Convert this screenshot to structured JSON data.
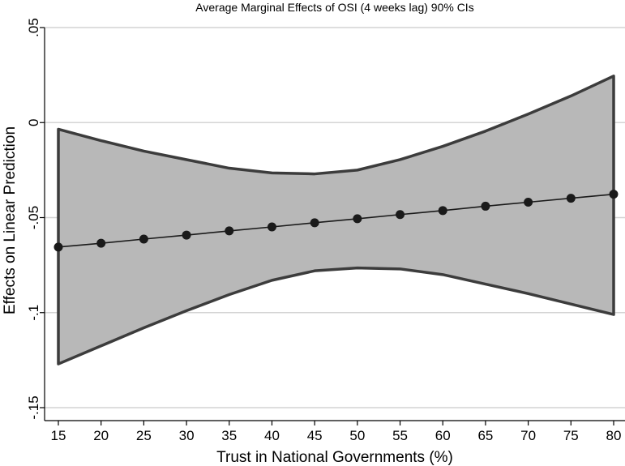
{
  "chart_data": {
    "type": "line",
    "title": "Average Marginal Effects of OSI (4 weeks lag) 90% CIs",
    "xlabel": "Trust in National Governments  (%)",
    "ylabel": "Effects on Linear Prediction",
    "x": [
      15,
      20,
      25,
      30,
      35,
      40,
      45,
      50,
      55,
      60,
      65,
      70,
      75,
      80
    ],
    "series": [
      {
        "name": "Average marginal effect",
        "values": [
          -0.0655,
          -0.0635,
          -0.0613,
          -0.0592,
          -0.057,
          -0.0549,
          -0.0527,
          -0.0506,
          -0.0484,
          -0.0463,
          -0.044,
          -0.0419,
          -0.0398,
          -0.0377
        ]
      }
    ],
    "ci_upper": [
      -0.0035,
      -0.0095,
      -0.015,
      -0.0195,
      -0.024,
      -0.0265,
      -0.027,
      -0.025,
      -0.0195,
      -0.0125,
      -0.0045,
      0.0045,
      0.014,
      0.0245
    ],
    "ci_lower": [
      -0.127,
      -0.1175,
      -0.108,
      -0.099,
      -0.0905,
      -0.083,
      -0.078,
      -0.0765,
      -0.077,
      -0.08,
      -0.085,
      -0.09,
      -0.0955,
      -0.101
    ],
    "xticks": [
      "15",
      "20",
      "25",
      "30",
      "35",
      "40",
      "45",
      "50",
      "55",
      "60",
      "65",
      "70",
      "75",
      "80"
    ],
    "yticks": [
      {
        "value": 0.05,
        "label": ".05"
      },
      {
        "value": 0,
        "label": "0"
      },
      {
        "value": -0.05,
        "label": "-.05"
      },
      {
        "value": -0.1,
        "label": "-.1"
      },
      {
        "value": -0.15,
        "label": "-.15"
      }
    ],
    "xlim": [
      15,
      80
    ],
    "ylim": [
      -0.15,
      0.05
    ],
    "grid": true,
    "colors": {
      "band_fill": "#b8b8b8",
      "band_edge": "#3c3c3c",
      "line": "#1a1a1a",
      "marker": "#1a1a1a",
      "grid": "#d4d4d4",
      "axis": "#000000"
    }
  }
}
